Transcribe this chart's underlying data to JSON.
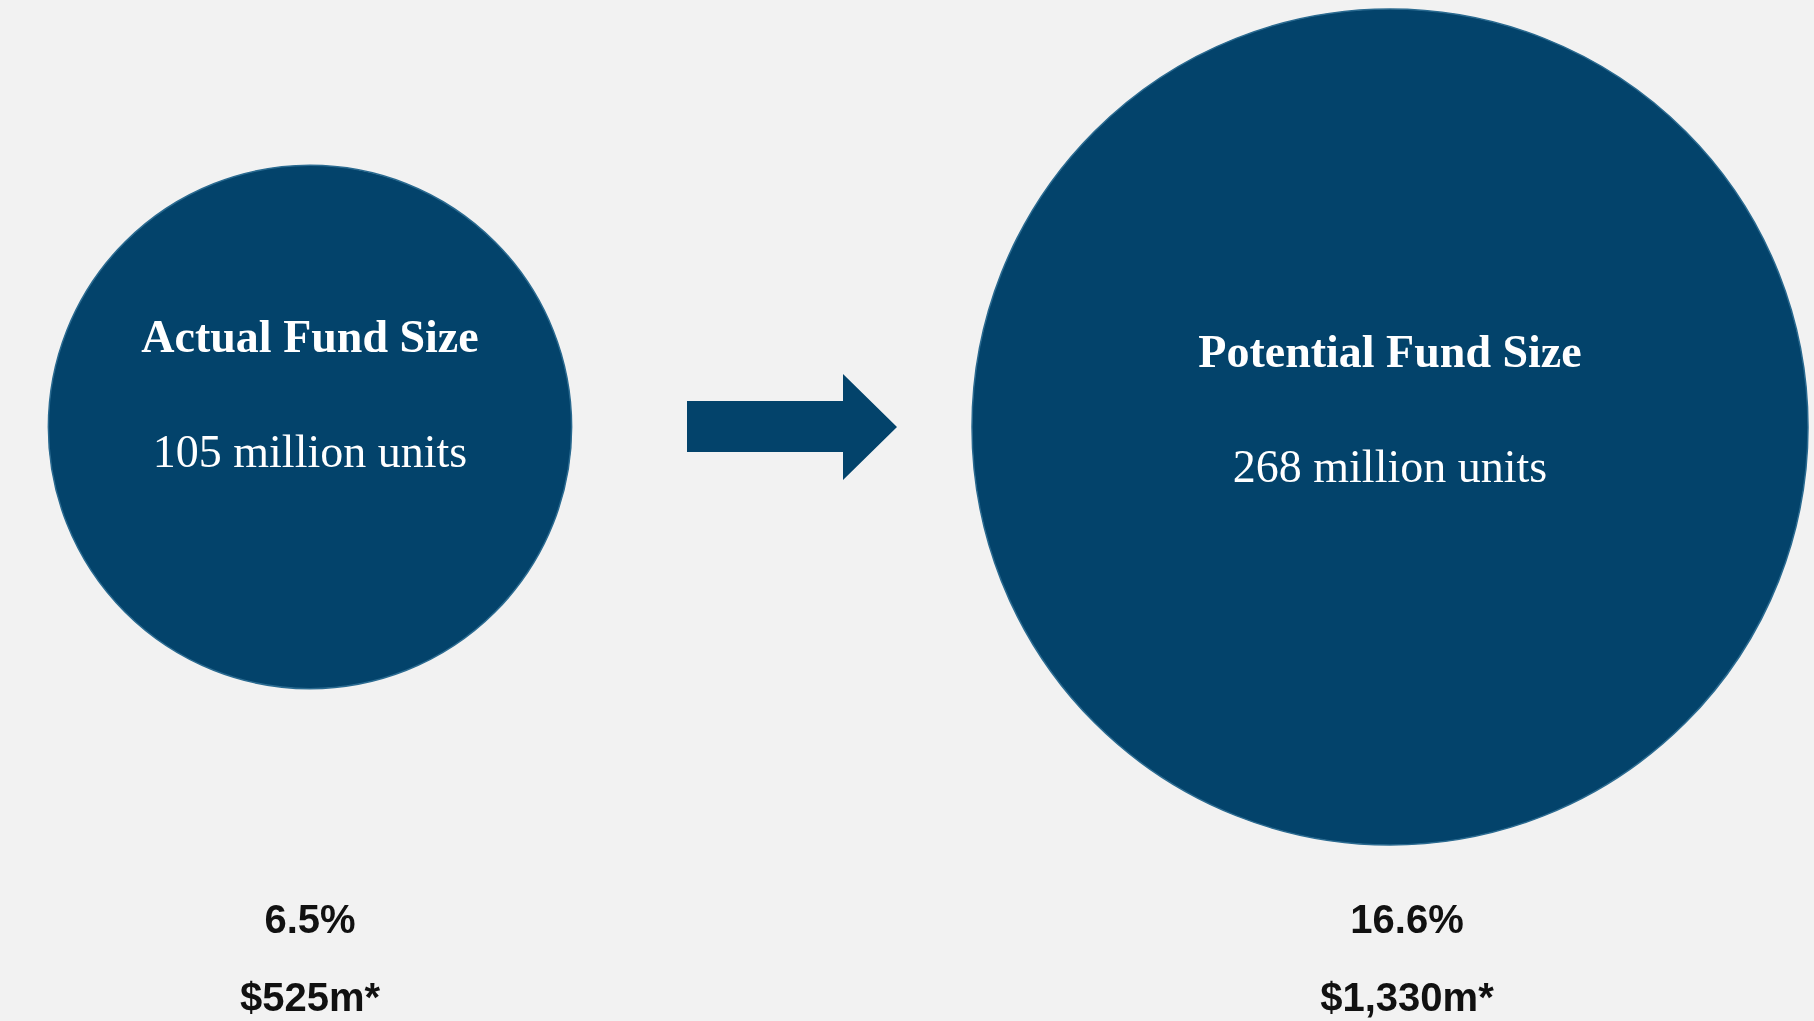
{
  "chart_data": {
    "type": "other",
    "categories": [
      "Actual Fund Size",
      "Potential Fund Size"
    ],
    "values": [
      105,
      268
    ],
    "value_labels": [
      "105 million units",
      "268 million units"
    ],
    "colors": [
      "#03436b",
      "#03436b"
    ],
    "annotations": [
      "6.5%",
      "$525m*",
      "16.6%",
      "$1,330m*"
    ]
  }
}
